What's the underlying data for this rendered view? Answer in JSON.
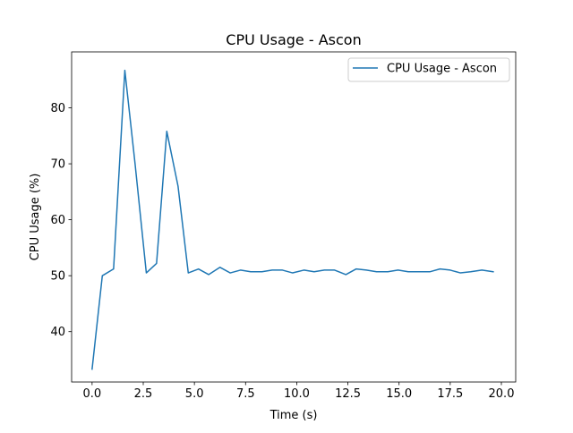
{
  "chart_data": {
    "type": "line",
    "title": "CPU Usage - Ascon",
    "xlabel": "Time (s)",
    "ylabel": "CPU Usage (%)",
    "xlim": [
      -1.0,
      20.7
    ],
    "ylim": [
      31.0,
      90.0
    ],
    "xticks": [
      0.0,
      2.5,
      5.0,
      7.5,
      10.0,
      12.5,
      15.0,
      17.5,
      20.0
    ],
    "xtick_labels": [
      "0.0",
      "2.5",
      "5.0",
      "7.5",
      "10.0",
      "12.5",
      "15.0",
      "17.5",
      "20.0"
    ],
    "yticks": [
      40,
      50,
      60,
      70,
      80
    ],
    "ytick_labels": [
      "40",
      "50",
      "60",
      "70",
      "80"
    ],
    "grid": false,
    "legend": {
      "position": "top-right",
      "entries": [
        "CPU Usage - Ascon"
      ]
    },
    "series": [
      {
        "name": "CPU Usage - Ascon",
        "color": "#1f77b4",
        "x": [
          0.0,
          0.5,
          1.05,
          1.6,
          2.1,
          2.65,
          3.15,
          3.65,
          4.2,
          4.7,
          5.2,
          5.7,
          6.25,
          6.75,
          7.25,
          7.75,
          8.3,
          8.8,
          9.3,
          9.8,
          10.35,
          10.85,
          11.35,
          11.85,
          12.4,
          12.9,
          13.4,
          13.9,
          14.45,
          14.95,
          15.45,
          15.95,
          16.5,
          17.0,
          17.5,
          18.0,
          18.5,
          19.05,
          19.6
        ],
        "y": [
          33.3,
          50.0,
          51.2,
          86.7,
          70.0,
          50.5,
          52.2,
          75.8,
          66.0,
          50.5,
          51.2,
          50.2,
          51.5,
          50.5,
          51.0,
          50.7,
          50.7,
          51.0,
          51.0,
          50.5,
          51.0,
          50.7,
          51.0,
          51.0,
          50.2,
          51.2,
          51.0,
          50.7,
          50.7,
          51.0,
          50.7,
          50.7,
          50.7,
          51.2,
          51.0,
          50.5,
          50.7,
          51.0,
          50.7
        ]
      }
    ]
  }
}
